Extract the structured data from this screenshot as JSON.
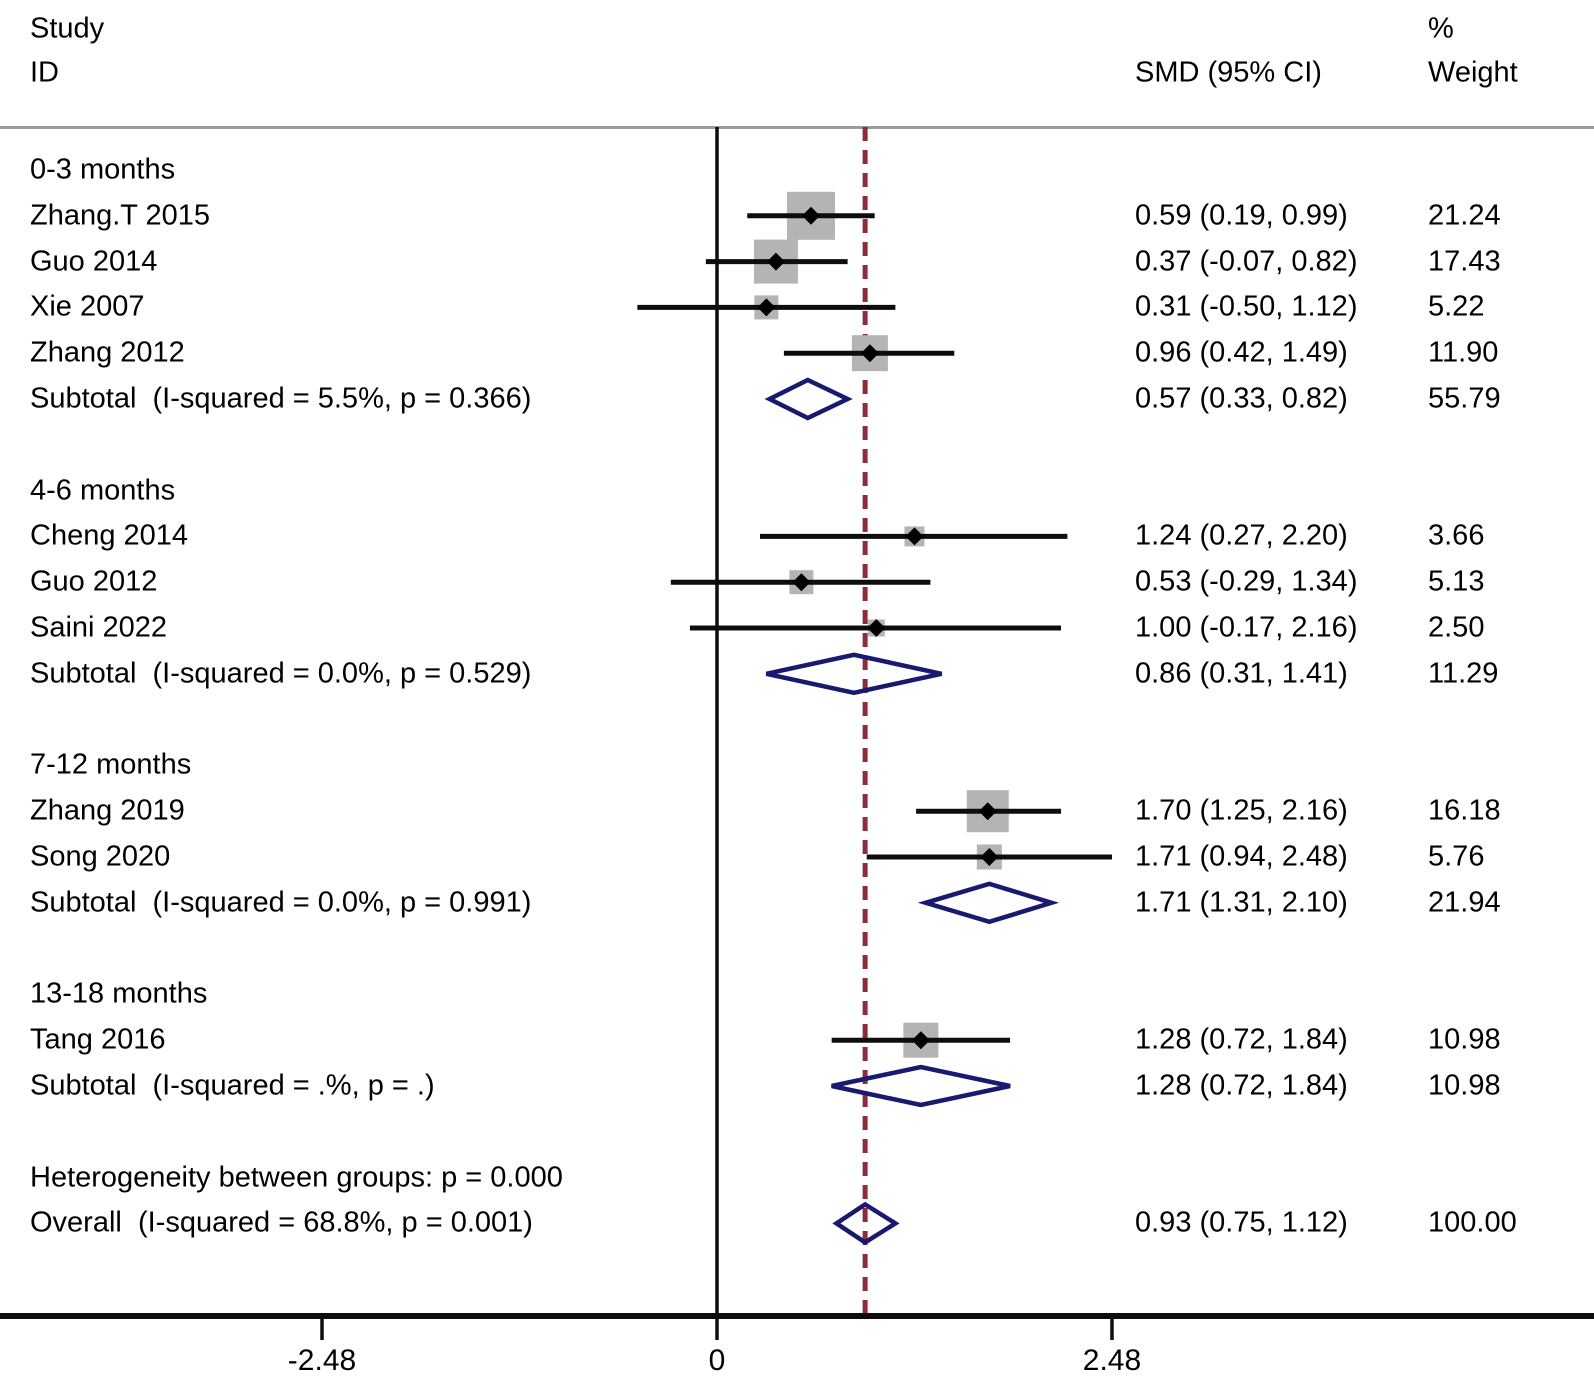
{
  "header": {
    "study_line1": "Study",
    "study_line2": "ID",
    "smd_col": "SMD (95% CI)",
    "percent": "%",
    "weight_col": "Weight"
  },
  "chart_data": {
    "type": "forest",
    "effect_measure": "SMD",
    "x_ticks": [
      -2.48,
      0,
      2.48
    ],
    "x_tick_labels": [
      "-2.48",
      "0",
      "2.48"
    ],
    "null_line_value": 0,
    "overall_dashed_line_value": 0.93,
    "groups": [
      {
        "label": "0-3 months",
        "studies": [
          {
            "id": "Zhang.T 2015",
            "smd": 0.59,
            "lo": 0.19,
            "hi": 0.99,
            "weight": 21.24,
            "smd_text": "0.59 (0.19, 0.99)",
            "weight_text": "21.24"
          },
          {
            "id": "Guo 2014",
            "smd": 0.37,
            "lo": -0.07,
            "hi": 0.82,
            "weight": 17.43,
            "smd_text": "0.37 (-0.07, 0.82)",
            "weight_text": "17.43"
          },
          {
            "id": "Xie 2007",
            "smd": 0.31,
            "lo": -0.5,
            "hi": 1.12,
            "weight": 5.22,
            "smd_text": "0.31 (-0.50, 1.12)",
            "weight_text": "5.22"
          },
          {
            "id": "Zhang 2012",
            "smd": 0.96,
            "lo": 0.42,
            "hi": 1.49,
            "weight": 11.9,
            "smd_text": "0.96 (0.42, 1.49)",
            "weight_text": "11.90"
          }
        ],
        "subtotal": {
          "label": "Subtotal  (I-squared = 5.5%, p = 0.366)",
          "smd": 0.57,
          "lo": 0.33,
          "hi": 0.82,
          "smd_text": "0.57 (0.33, 0.82)",
          "weight_text": "55.79"
        }
      },
      {
        "label": "4-6 months",
        "studies": [
          {
            "id": "Cheng 2014",
            "smd": 1.24,
            "lo": 0.27,
            "hi": 2.2,
            "weight": 3.66,
            "smd_text": "1.24 (0.27, 2.20)",
            "weight_text": "3.66"
          },
          {
            "id": "Guo 2012",
            "smd": 0.53,
            "lo": -0.29,
            "hi": 1.34,
            "weight": 5.13,
            "smd_text": "0.53 (-0.29, 1.34)",
            "weight_text": "5.13"
          },
          {
            "id": "Saini 2022",
            "smd": 1.0,
            "lo": -0.17,
            "hi": 2.16,
            "weight": 2.5,
            "smd_text": "1.00 (-0.17, 2.16)",
            "weight_text": "2.50"
          }
        ],
        "subtotal": {
          "label": "Subtotal  (I-squared = 0.0%, p = 0.529)",
          "smd": 0.86,
          "lo": 0.31,
          "hi": 1.41,
          "smd_text": "0.86 (0.31, 1.41)",
          "weight_text": "11.29"
        }
      },
      {
        "label": "7-12 months",
        "studies": [
          {
            "id": "Zhang 2019",
            "smd": 1.7,
            "lo": 1.25,
            "hi": 2.16,
            "weight": 16.18,
            "smd_text": "1.70 (1.25, 2.16)",
            "weight_text": "16.18"
          },
          {
            "id": "Song 2020",
            "smd": 1.71,
            "lo": 0.94,
            "hi": 2.48,
            "weight": 5.76,
            "smd_text": "1.71 (0.94, 2.48)",
            "weight_text": "5.76"
          }
        ],
        "subtotal": {
          "label": "Subtotal  (I-squared = 0.0%, p = 0.991)",
          "smd": 1.71,
          "lo": 1.31,
          "hi": 2.1,
          "smd_text": "1.71 (1.31, 2.10)",
          "weight_text": "21.94"
        }
      },
      {
        "label": "13-18 months",
        "studies": [
          {
            "id": "Tang 2016",
            "smd": 1.28,
            "lo": 0.72,
            "hi": 1.84,
            "weight": 10.98,
            "smd_text": "1.28 (0.72, 1.84)",
            "weight_text": "10.98"
          }
        ],
        "subtotal": {
          "label": "Subtotal  (I-squared = .%, p = .)",
          "smd": 1.28,
          "lo": 0.72,
          "hi": 1.84,
          "smd_text": "1.28 (0.72, 1.84)",
          "weight_text": "10.98"
        }
      }
    ],
    "heterogeneity_note": "Heterogeneity between groups: p = 0.000",
    "overall": {
      "label": "Overall  (I-squared = 68.8%, p = 0.001)",
      "smd": 0.93,
      "lo": 0.75,
      "hi": 1.12,
      "smd_text": "0.93 (0.75, 1.12)",
      "weight_text": "100.00"
    }
  },
  "colors": {
    "background": "#ffffff",
    "text": "#000000",
    "ci_line": "#0d0d0d",
    "point_marker": "#000000",
    "weight_square": "#b4b4b4",
    "pooled_diamond": "#191970",
    "null_line": "#0d0d0d",
    "overall_dashed_line": "#8e2b3d",
    "top_rule": "#9a9a9a",
    "axis_line": "#0d0d0d"
  }
}
